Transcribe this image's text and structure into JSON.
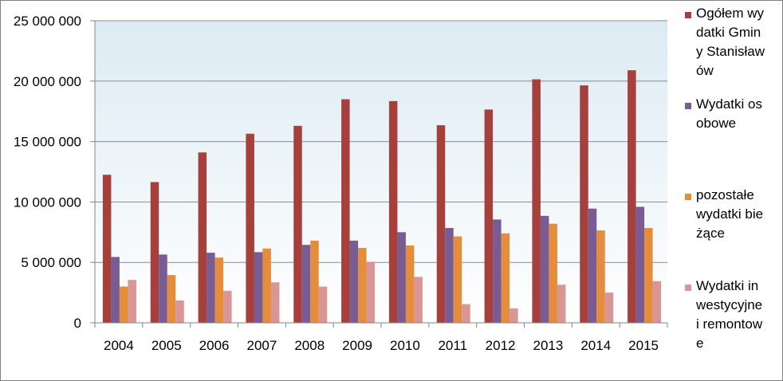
{
  "chart_data": {
    "type": "bar",
    "categories": [
      "2004",
      "2005",
      "2006",
      "2007",
      "2008",
      "2009",
      "2010",
      "2011",
      "2012",
      "2013",
      "2014",
      "2015"
    ],
    "series": [
      {
        "name": "Ogółem wydatki Gminy Stanisławów",
        "color": "#A5403D",
        "values": [
          12250000,
          11650000,
          14100000,
          15650000,
          16300000,
          18500000,
          18350000,
          16350000,
          17650000,
          20150000,
          19650000,
          20900000
        ]
      },
      {
        "name": "Wydatki osobowe",
        "color": "#7A5C94",
        "values": [
          5450000,
          5650000,
          5800000,
          5850000,
          6450000,
          6800000,
          7500000,
          7850000,
          8550000,
          8850000,
          9450000,
          9600000
        ]
      },
      {
        "name": "pozostałe wydatki bieżące",
        "color": "#E48D3C",
        "values": [
          3000000,
          3950000,
          5400000,
          6150000,
          6800000,
          6200000,
          6400000,
          7150000,
          7400000,
          8200000,
          7650000,
          7850000
        ]
      },
      {
        "name": "Wydatki inwestycyjne i remontowe",
        "color": "#D99694",
        "values": [
          3550000,
          1850000,
          2650000,
          3350000,
          3000000,
          5050000,
          3800000,
          1550000,
          1200000,
          3150000,
          2500000,
          3450000
        ]
      }
    ],
    "ylim": [
      0,
      25000000
    ],
    "yticks": [
      0,
      5000000,
      10000000,
      15000000,
      20000000,
      25000000
    ],
    "ytick_labels": [
      "0",
      "5 000 000",
      "10 000 000",
      "15 000 000",
      "20 000 000",
      "25 000 000"
    ],
    "grid": true,
    "legend_position": "right",
    "plot_background": "#DCEBF3"
  }
}
